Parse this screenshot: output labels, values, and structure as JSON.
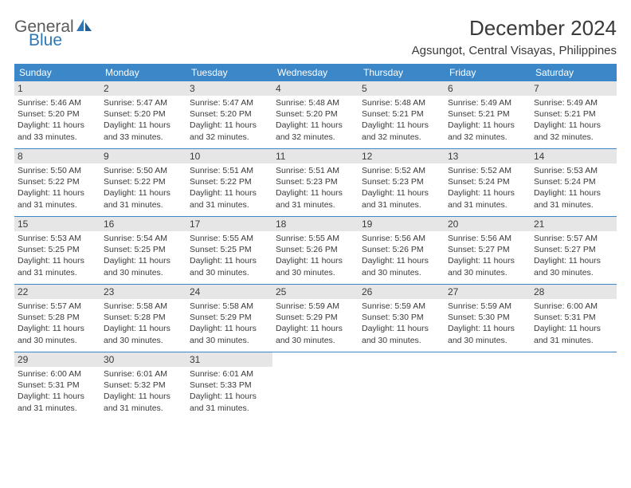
{
  "logo": {
    "text1": "General",
    "text2": "Blue"
  },
  "title": "December 2024",
  "location": "Agsungot, Central Visayas, Philippines",
  "colors": {
    "header_bg": "#3b87c8",
    "header_text": "#ffffff",
    "daynum_bg": "#e6e6e6",
    "body_text": "#3a3a3a",
    "logo_blue": "#2e78b7",
    "logo_gray": "#5a5a5a",
    "row_border": "#3b87c8"
  },
  "day_headers": [
    "Sunday",
    "Monday",
    "Tuesday",
    "Wednesday",
    "Thursday",
    "Friday",
    "Saturday"
  ],
  "weeks": [
    [
      {
        "n": "1",
        "sr": "Sunrise: 5:46 AM",
        "ss": "Sunset: 5:20 PM",
        "d1": "Daylight: 11 hours",
        "d2": "and 33 minutes."
      },
      {
        "n": "2",
        "sr": "Sunrise: 5:47 AM",
        "ss": "Sunset: 5:20 PM",
        "d1": "Daylight: 11 hours",
        "d2": "and 33 minutes."
      },
      {
        "n": "3",
        "sr": "Sunrise: 5:47 AM",
        "ss": "Sunset: 5:20 PM",
        "d1": "Daylight: 11 hours",
        "d2": "and 32 minutes."
      },
      {
        "n": "4",
        "sr": "Sunrise: 5:48 AM",
        "ss": "Sunset: 5:20 PM",
        "d1": "Daylight: 11 hours",
        "d2": "and 32 minutes."
      },
      {
        "n": "5",
        "sr": "Sunrise: 5:48 AM",
        "ss": "Sunset: 5:21 PM",
        "d1": "Daylight: 11 hours",
        "d2": "and 32 minutes."
      },
      {
        "n": "6",
        "sr": "Sunrise: 5:49 AM",
        "ss": "Sunset: 5:21 PM",
        "d1": "Daylight: 11 hours",
        "d2": "and 32 minutes."
      },
      {
        "n": "7",
        "sr": "Sunrise: 5:49 AM",
        "ss": "Sunset: 5:21 PM",
        "d1": "Daylight: 11 hours",
        "d2": "and 32 minutes."
      }
    ],
    [
      {
        "n": "8",
        "sr": "Sunrise: 5:50 AM",
        "ss": "Sunset: 5:22 PM",
        "d1": "Daylight: 11 hours",
        "d2": "and 31 minutes."
      },
      {
        "n": "9",
        "sr": "Sunrise: 5:50 AM",
        "ss": "Sunset: 5:22 PM",
        "d1": "Daylight: 11 hours",
        "d2": "and 31 minutes."
      },
      {
        "n": "10",
        "sr": "Sunrise: 5:51 AM",
        "ss": "Sunset: 5:22 PM",
        "d1": "Daylight: 11 hours",
        "d2": "and 31 minutes."
      },
      {
        "n": "11",
        "sr": "Sunrise: 5:51 AM",
        "ss": "Sunset: 5:23 PM",
        "d1": "Daylight: 11 hours",
        "d2": "and 31 minutes."
      },
      {
        "n": "12",
        "sr": "Sunrise: 5:52 AM",
        "ss": "Sunset: 5:23 PM",
        "d1": "Daylight: 11 hours",
        "d2": "and 31 minutes."
      },
      {
        "n": "13",
        "sr": "Sunrise: 5:52 AM",
        "ss": "Sunset: 5:24 PM",
        "d1": "Daylight: 11 hours",
        "d2": "and 31 minutes."
      },
      {
        "n": "14",
        "sr": "Sunrise: 5:53 AM",
        "ss": "Sunset: 5:24 PM",
        "d1": "Daylight: 11 hours",
        "d2": "and 31 minutes."
      }
    ],
    [
      {
        "n": "15",
        "sr": "Sunrise: 5:53 AM",
        "ss": "Sunset: 5:25 PM",
        "d1": "Daylight: 11 hours",
        "d2": "and 31 minutes."
      },
      {
        "n": "16",
        "sr": "Sunrise: 5:54 AM",
        "ss": "Sunset: 5:25 PM",
        "d1": "Daylight: 11 hours",
        "d2": "and 30 minutes."
      },
      {
        "n": "17",
        "sr": "Sunrise: 5:55 AM",
        "ss": "Sunset: 5:25 PM",
        "d1": "Daylight: 11 hours",
        "d2": "and 30 minutes."
      },
      {
        "n": "18",
        "sr": "Sunrise: 5:55 AM",
        "ss": "Sunset: 5:26 PM",
        "d1": "Daylight: 11 hours",
        "d2": "and 30 minutes."
      },
      {
        "n": "19",
        "sr": "Sunrise: 5:56 AM",
        "ss": "Sunset: 5:26 PM",
        "d1": "Daylight: 11 hours",
        "d2": "and 30 minutes."
      },
      {
        "n": "20",
        "sr": "Sunrise: 5:56 AM",
        "ss": "Sunset: 5:27 PM",
        "d1": "Daylight: 11 hours",
        "d2": "and 30 minutes."
      },
      {
        "n": "21",
        "sr": "Sunrise: 5:57 AM",
        "ss": "Sunset: 5:27 PM",
        "d1": "Daylight: 11 hours",
        "d2": "and 30 minutes."
      }
    ],
    [
      {
        "n": "22",
        "sr": "Sunrise: 5:57 AM",
        "ss": "Sunset: 5:28 PM",
        "d1": "Daylight: 11 hours",
        "d2": "and 30 minutes."
      },
      {
        "n": "23",
        "sr": "Sunrise: 5:58 AM",
        "ss": "Sunset: 5:28 PM",
        "d1": "Daylight: 11 hours",
        "d2": "and 30 minutes."
      },
      {
        "n": "24",
        "sr": "Sunrise: 5:58 AM",
        "ss": "Sunset: 5:29 PM",
        "d1": "Daylight: 11 hours",
        "d2": "and 30 minutes."
      },
      {
        "n": "25",
        "sr": "Sunrise: 5:59 AM",
        "ss": "Sunset: 5:29 PM",
        "d1": "Daylight: 11 hours",
        "d2": "and 30 minutes."
      },
      {
        "n": "26",
        "sr": "Sunrise: 5:59 AM",
        "ss": "Sunset: 5:30 PM",
        "d1": "Daylight: 11 hours",
        "d2": "and 30 minutes."
      },
      {
        "n": "27",
        "sr": "Sunrise: 5:59 AM",
        "ss": "Sunset: 5:30 PM",
        "d1": "Daylight: 11 hours",
        "d2": "and 30 minutes."
      },
      {
        "n": "28",
        "sr": "Sunrise: 6:00 AM",
        "ss": "Sunset: 5:31 PM",
        "d1": "Daylight: 11 hours",
        "d2": "and 31 minutes."
      }
    ],
    [
      {
        "n": "29",
        "sr": "Sunrise: 6:00 AM",
        "ss": "Sunset: 5:31 PM",
        "d1": "Daylight: 11 hours",
        "d2": "and 31 minutes."
      },
      {
        "n": "30",
        "sr": "Sunrise: 6:01 AM",
        "ss": "Sunset: 5:32 PM",
        "d1": "Daylight: 11 hours",
        "d2": "and 31 minutes."
      },
      {
        "n": "31",
        "sr": "Sunrise: 6:01 AM",
        "ss": "Sunset: 5:33 PM",
        "d1": "Daylight: 11 hours",
        "d2": "and 31 minutes."
      },
      null,
      null,
      null,
      null
    ]
  ]
}
